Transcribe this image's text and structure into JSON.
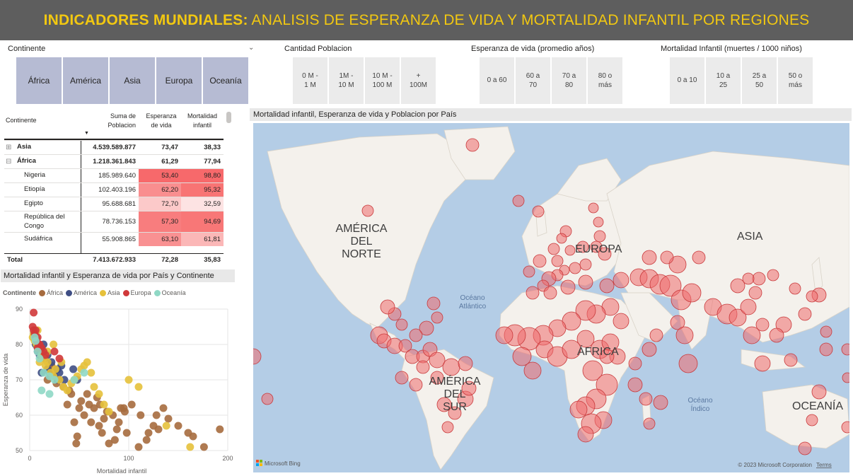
{
  "header": {
    "title_bold": "INDICADORES MUNDIALES:",
    "title_rest": " ANALISIS DE ESPERANZA DE VIDA Y MORTALIDAD INFANTIL POR REGIONES"
  },
  "slicers": {
    "continente": {
      "label": "Continente",
      "options": [
        "África",
        "América",
        "Asia",
        "Europa",
        "Oceanía"
      ]
    },
    "poblacion": {
      "label": "Cantidad Poblacion",
      "options": [
        [
          "0 M -",
          "1 M"
        ],
        [
          "1M -",
          "10 M"
        ],
        [
          "10 M -",
          "100 M"
        ],
        [
          "+",
          "100M"
        ]
      ]
    },
    "esperanza": {
      "label": "Esperanza de vida (promedio años)",
      "options": [
        [
          "0 a 60"
        ],
        [
          "60 a",
          "70"
        ],
        [
          "70 a",
          "80"
        ],
        [
          "80 o",
          "más"
        ]
      ]
    },
    "mortalidad": {
      "label": "Mortalidad Infantil (muertes / 1000 niños)",
      "options": [
        [
          "0 a 10"
        ],
        [
          "10 a",
          "25"
        ],
        [
          "25 a",
          "50"
        ],
        [
          "50 o",
          "más"
        ]
      ]
    }
  },
  "matrix": {
    "headers": {
      "continente": "Continente",
      "poblacion": [
        "Suma de",
        "Poblacion"
      ],
      "esperanza": [
        "Esperanza",
        "de vida"
      ],
      "mortalidad": [
        "Mortalidad",
        "infantil"
      ]
    },
    "rows": [
      {
        "name": "Asia",
        "level": 0,
        "expander": "+",
        "poblacion": "4.539.589.877",
        "esperanza": "73,47",
        "mortalidad": "38,33",
        "bold": true
      },
      {
        "name": "África",
        "level": 0,
        "expander": "−",
        "poblacion": "1.218.361.843",
        "esperanza": "61,29",
        "mortalidad": "77,94",
        "bold": true
      },
      {
        "name": "Nigeria",
        "level": 1,
        "poblacion": "185.989.640",
        "esperanza": "53,40",
        "mortalidad": "98,80",
        "e_color": "#f7696b",
        "m_color": "#f7696b"
      },
      {
        "name": "Etiopía",
        "level": 1,
        "poblacion": "102.403.196",
        "esperanza": "62,20",
        "mortalidad": "95,32",
        "e_color": "#f98e8f",
        "m_color": "#f87474"
      },
      {
        "name": "Egipto",
        "level": 1,
        "poblacion": "95.688.681",
        "esperanza": "72,70",
        "mortalidad": "32,59",
        "e_color": "#fcc9c9",
        "m_color": "#fde3e3"
      },
      {
        "name": "República del Congo",
        "level": 1,
        "poblacion": "78.736.153",
        "esperanza": "57,30",
        "mortalidad": "94,69",
        "e_color": "#f87d7e",
        "m_color": "#f87777"
      },
      {
        "name": "Sudáfrica",
        "level": 1,
        "poblacion": "55.908.865",
        "esperanza": "63,10",
        "mortalidad": "61,81",
        "e_color": "#f99192",
        "m_color": "#fbb7b7"
      }
    ],
    "total": {
      "name": "Total",
      "poblacion": "7.413.672.933",
      "esperanza": "72,28",
      "mortalidad": "35,83"
    }
  },
  "scatter": {
    "title": "Mortalidad infantil y Esperanza de vida por País y Continente",
    "legend_title": "Continente",
    "legend": [
      {
        "name": "África",
        "color": "#a66b3e"
      },
      {
        "name": "América",
        "color": "#3f4e84"
      },
      {
        "name": "Asia",
        "color": "#e6c13b"
      },
      {
        "name": "Europa",
        "color": "#d0393a"
      },
      {
        "name": "Oceanía",
        "color": "#8fd8c5"
      }
    ]
  },
  "chart_data": {
    "type": "scatter",
    "title": "Mortalidad infantil y Esperanza de vida por País y Continente",
    "xlabel": "Mortalidad infantil",
    "ylabel": "Esperanza de vida",
    "xlim": [
      0,
      200
    ],
    "ylim": [
      50,
      90
    ],
    "xticks": [
      "0",
      "100",
      "200"
    ],
    "yticks": [
      "90",
      "80",
      "70",
      "60",
      "50"
    ],
    "grid": true,
    "legend_position": "top",
    "series": [
      {
        "name": "África",
        "color": "#a66b3e",
        "points": [
          [
            192,
            56
          ],
          [
            176,
            51
          ],
          [
            165,
            54
          ],
          [
            160,
            55
          ],
          [
            150,
            57
          ],
          [
            140,
            59
          ],
          [
            130,
            56
          ],
          [
            135,
            62
          ],
          [
            125,
            57
          ],
          [
            128,
            60
          ],
          [
            120,
            55
          ],
          [
            118,
            53
          ],
          [
            110,
            51
          ],
          [
            112,
            60
          ],
          [
            103,
            63
          ],
          [
            98,
            55
          ],
          [
            96,
            61
          ],
          [
            95,
            62
          ],
          [
            92,
            62
          ],
          [
            90,
            58
          ],
          [
            88,
            56
          ],
          [
            86,
            53
          ],
          [
            84,
            60
          ],
          [
            80,
            52
          ],
          [
            78,
            61
          ],
          [
            75,
            59
          ],
          [
            73,
            55
          ],
          [
            71,
            63
          ],
          [
            70,
            57
          ],
          [
            68,
            65
          ],
          [
            65,
            62
          ],
          [
            62,
            58
          ],
          [
            60,
            63
          ],
          [
            58,
            66
          ],
          [
            55,
            60
          ],
          [
            52,
            64
          ],
          [
            50,
            62
          ],
          [
            48,
            54
          ],
          [
            45,
            58
          ],
          [
            42,
            66
          ],
          [
            40,
            67
          ],
          [
            38,
            63
          ],
          [
            34,
            68
          ],
          [
            30,
            70
          ],
          [
            27,
            69
          ],
          [
            24,
            72
          ],
          [
            22,
            74
          ],
          [
            20,
            74
          ],
          [
            18,
            70
          ],
          [
            47,
            52
          ]
        ]
      },
      {
        "name": "América",
        "color": "#3f4e84",
        "points": [
          [
            30,
            72
          ],
          [
            28,
            70
          ],
          [
            22,
            75
          ],
          [
            18,
            73
          ],
          [
            15,
            76
          ],
          [
            12,
            78
          ],
          [
            10,
            77
          ],
          [
            8,
            79
          ],
          [
            32,
            74
          ],
          [
            25,
            71
          ],
          [
            12,
            72
          ],
          [
            18,
            77
          ],
          [
            8,
            78
          ],
          [
            6,
            80
          ],
          [
            20,
            72
          ],
          [
            35,
            70
          ],
          [
            44,
            73
          ],
          [
            48,
            70
          ],
          [
            14,
            80
          ],
          [
            28,
            73
          ]
        ]
      },
      {
        "name": "Asia",
        "color": "#e6c13b",
        "points": [
          [
            4,
            83
          ],
          [
            3,
            82
          ],
          [
            5,
            81
          ],
          [
            7,
            80
          ],
          [
            9,
            79
          ],
          [
            12,
            77
          ],
          [
            14,
            76
          ],
          [
            16,
            74
          ],
          [
            18,
            75
          ],
          [
            21,
            72
          ],
          [
            24,
            71
          ],
          [
            26,
            73
          ],
          [
            30,
            70
          ],
          [
            34,
            68
          ],
          [
            38,
            67
          ],
          [
            42,
            69
          ],
          [
            45,
            70
          ],
          [
            48,
            71
          ],
          [
            52,
            73
          ],
          [
            55,
            74
          ],
          [
            58,
            75
          ],
          [
            62,
            72
          ],
          [
            65,
            68
          ],
          [
            70,
            66
          ],
          [
            75,
            63
          ],
          [
            80,
            61
          ],
          [
            100,
            70
          ],
          [
            110,
            68
          ],
          [
            138,
            57
          ],
          [
            162,
            51
          ],
          [
            32,
            75
          ],
          [
            24,
            80
          ],
          [
            18,
            78
          ],
          [
            8,
            84
          ],
          [
            10,
            75
          ]
        ]
      },
      {
        "name": "Europa",
        "color": "#d0393a",
        "points": [
          [
            3,
            85
          ],
          [
            4,
            84
          ],
          [
            5,
            83
          ],
          [
            6,
            82
          ],
          [
            7,
            81
          ],
          [
            8,
            82
          ],
          [
            9,
            80
          ],
          [
            10,
            80
          ],
          [
            12,
            79
          ],
          [
            14,
            78
          ],
          [
            16,
            77
          ],
          [
            4,
            89
          ],
          [
            25,
            78
          ],
          [
            30,
            76
          ],
          [
            8,
            79
          ],
          [
            6,
            84
          ]
        ]
      },
      {
        "name": "Oceanía",
        "color": "#8fd8c5",
        "points": [
          [
            5,
            82
          ],
          [
            6,
            81
          ],
          [
            8,
            78
          ],
          [
            10,
            76
          ],
          [
            14,
            72
          ],
          [
            20,
            71
          ],
          [
            25,
            70
          ],
          [
            12,
            67
          ],
          [
            20,
            66
          ],
          [
            45,
            70
          ],
          [
            55,
            72
          ]
        ]
      }
    ]
  },
  "map": {
    "title": "Mortalidad infantil, Esperanza de vida y Poblacion por País",
    "labels": {
      "north_america": [
        "AMÉRICA",
        "DEL",
        "NORTE"
      ],
      "south_america": [
        "AMÉRICA",
        "DEL",
        "SUR"
      ],
      "europe": "EUROPA",
      "asia": "ASIA",
      "africa": "ÁFRICA",
      "oceania": "OCEANÍA",
      "atlantic": [
        "Océano",
        "Atlántico"
      ],
      "indian": [
        "Océano",
        "Índico"
      ]
    },
    "attribution": "© 2023 Microsoft Corporation",
    "terms": "Terms",
    "logo": "Microsoft Bing"
  }
}
